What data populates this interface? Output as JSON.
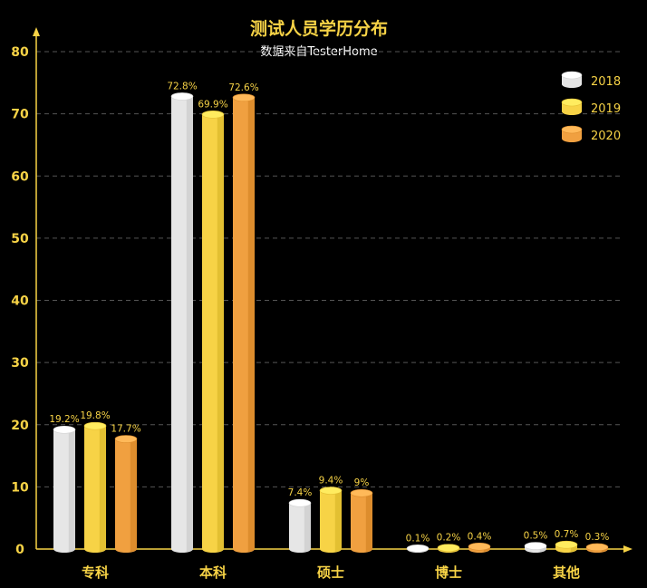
{
  "chart_data": {
    "type": "bar",
    "title": "测试人员学历分布",
    "subtitle": "数据来自TesterHome",
    "categories": [
      "专科",
      "本科",
      "硕士",
      "博士",
      "其他"
    ],
    "series": [
      {
        "name": "2018",
        "values": [
          19.2,
          72.8,
          7.4,
          0.1,
          0.5
        ],
        "labels": [
          "19.2%",
          "72.8%",
          "7.4%",
          "0.1%",
          "0.5%"
        ],
        "color": "#e6e6e6"
      },
      {
        "name": "2019",
        "values": [
          19.8,
          69.9,
          9.4,
          0.2,
          0.7
        ],
        "labels": [
          "19.8%",
          "69.9%",
          "9.4%",
          "0.2%",
          "0.7%"
        ],
        "color": "#f7d346"
      },
      {
        "name": "2020",
        "values": [
          17.7,
          72.6,
          9,
          0.4,
          0.3
        ],
        "labels": [
          "17.7%",
          "72.6%",
          "9%",
          "0.4%",
          "0.3%"
        ],
        "color": "#f0a040"
      }
    ],
    "yticks": [
      0,
      10,
      20,
      30,
      40,
      50,
      60,
      70,
      80
    ],
    "ylim": [
      0,
      80
    ],
    "grid": true,
    "legend": "top-right",
    "colors": {
      "axis": "#f7d346",
      "grid": "#555555",
      "background": "#000000"
    }
  }
}
